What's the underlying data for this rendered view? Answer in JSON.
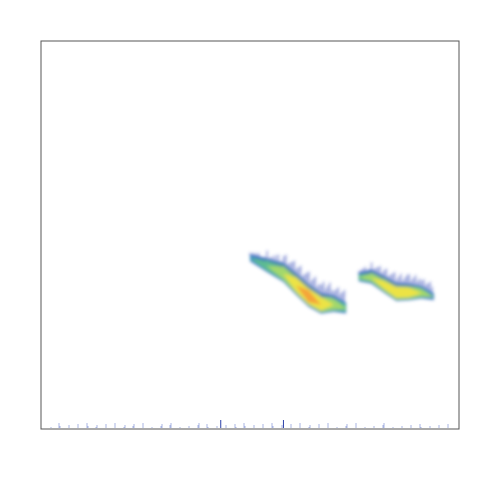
{
  "chart_data": {
    "type": "heatmap",
    "title": "",
    "xlabel": "",
    "ylabel": "",
    "grid": false,
    "colormap": [
      "#ffffff",
      "#2c3fb8",
      "#3b8fc4",
      "#5fbf8f",
      "#a6d96a",
      "#f0e442",
      "#f4a03a",
      "#e8412f"
    ],
    "features": [
      {
        "name": "",
        "ridge_x": [
          0.5,
          0.54,
          0.58,
          0.61,
          0.64,
          0.67,
          0.7,
          0.73
        ],
        "ridge_y": [
          0.56,
          0.58,
          0.6,
          0.63,
          0.66,
          0.68,
          0.68,
          0.69
        ],
        "thickness": [
          0.012,
          0.022,
          0.03,
          0.034,
          0.035,
          0.032,
          0.026,
          0.018
        ],
        "peak_intensity": [
          0.35,
          0.55,
          0.7,
          0.82,
          0.9,
          0.85,
          0.65,
          0.45
        ]
      },
      {
        "name": "",
        "ridge_x": [
          0.76,
          0.79,
          0.82,
          0.85,
          0.88,
          0.91,
          0.94
        ],
        "ridge_y": [
          0.61,
          0.61,
          0.63,
          0.65,
          0.65,
          0.65,
          0.66
        ],
        "thickness": [
          0.014,
          0.022,
          0.026,
          0.028,
          0.026,
          0.02,
          0.012
        ],
        "peak_intensity": [
          0.45,
          0.6,
          0.72,
          0.8,
          0.78,
          0.6,
          0.35
        ]
      }
    ],
    "baseline_noise": true
  }
}
